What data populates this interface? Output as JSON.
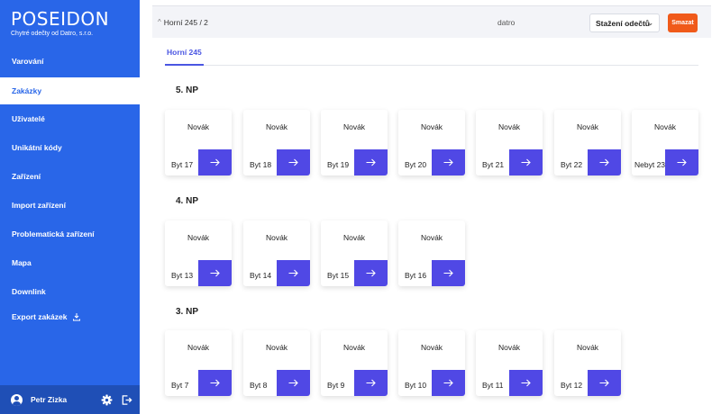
{
  "sidebar": {
    "logo": "POSEIDON",
    "tagline": "Chytré odečty od Datro, s.r.o.",
    "items": [
      {
        "label": "Varování"
      },
      {
        "label": "Zakázky"
      },
      {
        "label": "Uživatelé"
      },
      {
        "label": "Unikátní kódy"
      },
      {
        "label": "Zařízení"
      },
      {
        "label": "Import zařízení"
      },
      {
        "label": "Problematická zařízení"
      },
      {
        "label": "Mapa"
      },
      {
        "label": "Downlink"
      },
      {
        "label": "Export zakázek"
      }
    ],
    "active_item": "Zakázky",
    "user": {
      "name": "Petr Zizka"
    }
  },
  "topbar": {
    "breadcrumb": "Horní 245 / 2",
    "center_text": "datro",
    "select_value": "Stažení odečtů",
    "delete_label": "Smazat"
  },
  "tabs": [
    {
      "label": "Horní 245"
    }
  ],
  "floors": [
    {
      "title": "5. NP",
      "units": [
        {
          "owner": "Novák",
          "label": "Byt 17"
        },
        {
          "owner": "Novák",
          "label": "Byt 18"
        },
        {
          "owner": "Novák",
          "label": "Byt 19"
        },
        {
          "owner": "Novák",
          "label": "Byt 20"
        },
        {
          "owner": "Novák",
          "label": "Byt 21"
        },
        {
          "owner": "Novák",
          "label": "Byt 22"
        },
        {
          "owner": "Novák",
          "label": "Nebyt 23"
        }
      ]
    },
    {
      "title": "4. NP",
      "units": [
        {
          "owner": "Novák",
          "label": "Byt 13"
        },
        {
          "owner": "Novák",
          "label": "Byt 14"
        },
        {
          "owner": "Novák",
          "label": "Byt 15"
        },
        {
          "owner": "Novák",
          "label": "Byt 16"
        }
      ]
    },
    {
      "title": "3. NP",
      "units": [
        {
          "owner": "Novák",
          "label": "Byt 7"
        },
        {
          "owner": "Novák",
          "label": "Byt 8"
        },
        {
          "owner": "Novák",
          "label": "Byt 9"
        },
        {
          "owner": "Novák",
          "label": "Byt 10"
        },
        {
          "owner": "Novák",
          "label": "Byt 11"
        },
        {
          "owner": "Novák",
          "label": "Byt 12"
        }
      ]
    }
  ],
  "colors": {
    "sidebar": "#2966e8",
    "accent": "#5048e5",
    "danger": "#f05a1a"
  },
  "icons": {
    "unit_action": "arrow-right-icon",
    "export": "download-icon",
    "settings": "gear-icon",
    "logout": "logout-icon",
    "avatar": "user-avatar-icon"
  }
}
